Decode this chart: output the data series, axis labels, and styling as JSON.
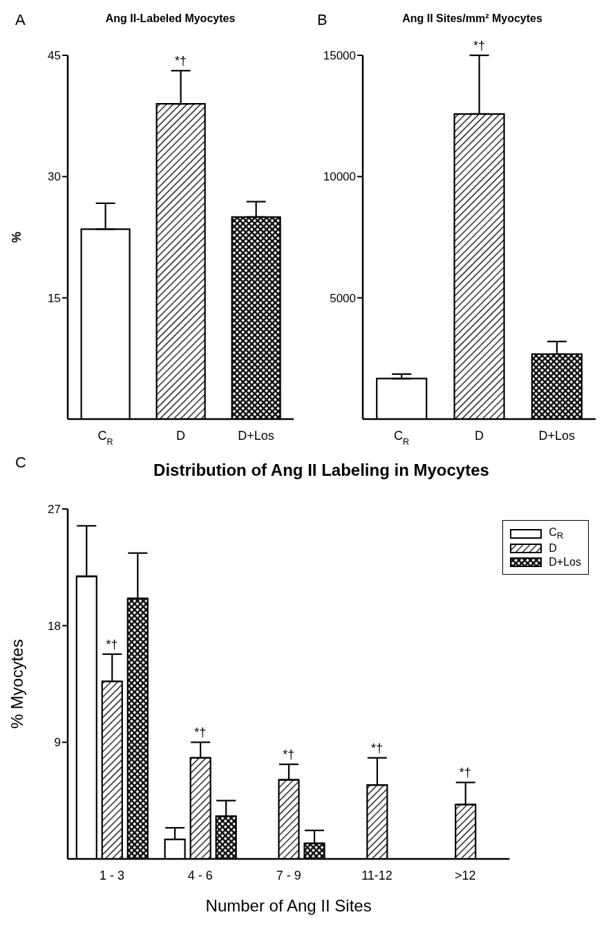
{
  "chart_data": [
    {
      "type": "bar",
      "title": "Ang II-Labeled Myocytes",
      "ylabel": "%",
      "categories": [
        "C$_{R}$",
        "D",
        "D+Los"
      ],
      "values": [
        23.5,
        39.0,
        25.0
      ],
      "errors": [
        [
          23.5,
          26.7
        ],
        [
          39.0,
          43.1
        ],
        [
          25.0,
          26.9
        ]
      ],
      "colors": [
        "#ffffff",
        "#000000",
        "#000000"
      ],
      "ylim": [
        0,
        45
      ],
      "yticks": [
        15,
        30,
        45
      ],
      "annotations": [
        "A",
        {
          "text": "*†",
          "x": "D",
          "y": 43.1
        }
      ]
    },
    {
      "type": "bar",
      "title": "Ang II Sites/mm² Myocytes",
      "categories": [
        "C$_{R}$",
        "D",
        "D+Los"
      ],
      "values": [
        1670,
        12580,
        2680
      ],
      "errors": [
        [
          1670,
          1857
        ],
        [
          12580,
          15000
        ],
        [
          2680,
          3200
        ]
      ],
      "colors": [
        "#ffffff",
        "#000000",
        "#000000"
      ],
      "ylim": [
        0,
        15000
      ],
      "yticks": [
        5000,
        10000,
        15000
      ],
      "annotations": [
        "B",
        {
          "text": "*†",
          "x": "D",
          "y": 15000
        }
      ]
    },
    {
      "type": "bar",
      "title": "Distribution of Ang II Labeling in Myocytes",
      "xlabel": "Number of Ang II Sites",
      "ylabel": "% Myocytes",
      "categories": [
        "1 - 3",
        "4 - 6",
        "7 - 9",
        "11-12",
        ">12"
      ],
      "ylim": [
        0,
        27
      ],
      "yticks": [
        9,
        18,
        27
      ],
      "legend": "top right",
      "series": [
        {
          "name": "C$_{R}$",
          "color": "#ffffff",
          "values": [
            21.8,
            1.5,
            null,
            null,
            null
          ],
          "errors": [
            [
              21.8,
              25.7
            ],
            [
              1.5,
              2.4
            ],
            null,
            null,
            null
          ]
        },
        {
          "name": "D",
          "color": "#000000",
          "values": [
            13.7,
            7.8,
            6.1,
            5.7,
            4.2
          ],
          "errors": [
            [
              13.7,
              15.8
            ],
            [
              7.8,
              9.0
            ],
            [
              6.1,
              7.3
            ],
            [
              5.7,
              7.8
            ],
            [
              4.2,
              5.9
            ]
          ]
        },
        {
          "name": "D+Los",
          "color": "#000000",
          "values": [
            20.1,
            3.3,
            1.2,
            null,
            null
          ],
          "errors": [
            [
              20.1,
              23.6
            ],
            [
              3.3,
              4.5
            ],
            [
              1.2,
              2.2
            ],
            null,
            null
          ]
        }
      ],
      "annotations": [
        "C",
        {
          "text": "*†",
          "x": "1 - 3",
          "y": 15.8
        },
        {
          "text": "*†",
          "x": "4 - 6",
          "y": 9.0
        },
        {
          "text": "*†",
          "x": "7 - 9",
          "y": 7.3
        },
        {
          "text": "*†",
          "x": "11-12",
          "y": 7.8
        },
        {
          "text": "*†",
          "x": ">12",
          "y": 5.9
        }
      ]
    }
  ]
}
